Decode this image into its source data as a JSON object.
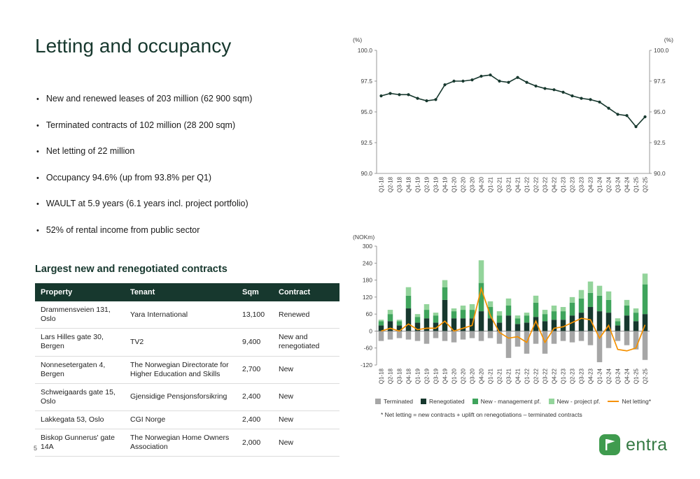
{
  "title": "Letting and occupancy",
  "page_number": "5",
  "bullets": [
    "New and renewed leases of 203 million (62 900 sqm)",
    "Terminated contracts of 102 million (28 200 sqm)",
    "Net letting of 22 million",
    "Occupancy 94.6% (up from 93.8% per Q1)",
    "WAULT at 5.9 years (6.1 years incl. project portfolio)",
    "52% of rental income from public sector"
  ],
  "contracts": {
    "heading": "Largest new and renegotiated contracts",
    "columns": [
      "Property",
      "Tenant",
      "Sqm",
      "Contract"
    ],
    "rows": [
      [
        "Drammensveien 131, Oslo",
        "Yara International",
        "13,100",
        "Renewed"
      ],
      [
        "Lars Hilles gate 30, Bergen",
        "TV2",
        "9,400",
        "New and renegotiated"
      ],
      [
        "Nonnesetergaten 4, Bergen",
        "The Norwegian Directorate for Higher Education and Skills",
        "2,700",
        "New"
      ],
      [
        "Schweigaards gate 15, Oslo",
        "Gjensidige Pensjonsforsikring",
        "2,400",
        "New"
      ],
      [
        "Lakkegata 53, Oslo",
        "CGI Norge",
        "2,400",
        "New"
      ],
      [
        "Biskop Gunnerus' gate 14A",
        "The Norwegian Home Owners Association",
        "2,000",
        "New"
      ]
    ]
  },
  "logo": {
    "text": "entra"
  },
  "colors": {
    "brand_dark_green": "#17382E",
    "medium_green": "#3FA45C",
    "light_green": "#93D49B",
    "terminated_gray": "#A6A6A6",
    "net_letting_orange": "#F59100"
  },
  "chart_data": [
    {
      "type": "line",
      "unit_label": "(%)",
      "x": [
        "Q1-18",
        "Q2-18",
        "Q3-18",
        "Q4-18",
        "Q1-19",
        "Q2-19",
        "Q3-19",
        "Q4-19",
        "Q1-20",
        "Q2-20",
        "Q3-20",
        "Q4-20",
        "Q1-21",
        "Q2-21",
        "Q3-21",
        "Q4-21",
        "Q1-22",
        "Q2-22",
        "Q3-22",
        "Q4-22",
        "Q1-23",
        "Q2-23",
        "Q3-23",
        "Q4-23",
        "Q1-24",
        "Q2-24",
        "Q3-24",
        "Q4-24",
        "Q1-25",
        "Q2-25"
      ],
      "series": [
        {
          "name": "Occupancy",
          "color": "#17382E",
          "values": [
            96.3,
            96.5,
            96.4,
            96.4,
            96.1,
            95.9,
            96.0,
            97.2,
            97.5,
            97.5,
            97.6,
            97.9,
            98.0,
            97.5,
            97.4,
            97.8,
            97.4,
            97.1,
            96.9,
            96.8,
            96.6,
            96.3,
            96.1,
            96.0,
            95.8,
            95.3,
            94.8,
            94.7,
            93.8,
            94.6
          ]
        }
      ],
      "ylim": [
        90.0,
        100.0
      ],
      "yticks": [
        "90.0",
        "92.5",
        "95.0",
        "97.5",
        "100.0"
      ],
      "grid": false,
      "axis_both_sides": true
    },
    {
      "type": "bar",
      "unit_label": "(NOKm)",
      "x": [
        "Q1-18",
        "Q2-18",
        "Q3-18",
        "Q4-18",
        "Q1-19",
        "Q2-19",
        "Q3-19",
        "Q4-19",
        "Q1-20",
        "Q2-20",
        "Q3-20",
        "Q4-20",
        "Q1-21",
        "Q2-21",
        "Q3-21",
        "Q4-21",
        "Q1-22",
        "Q2-22",
        "Q3-22",
        "Q4-22",
        "Q1-23",
        "Q2-23",
        "Q3-23",
        "Q4-23",
        "Q1-24",
        "Q2-24",
        "Q3-24",
        "Q4-24",
        "Q1-25",
        "Q2-25"
      ],
      "series": [
        {
          "name": "Terminated",
          "color": "#A6A6A6",
          "values": [
            -35,
            -30,
            -25,
            -30,
            -35,
            -45,
            -25,
            -35,
            -40,
            -30,
            -25,
            -35,
            -25,
            -45,
            -95,
            -55,
            -80,
            -45,
            -80,
            -45,
            -35,
            -40,
            -35,
            -50,
            -110,
            -60,
            -35,
            -50,
            -65,
            -102
          ]
        },
        {
          "name": "Renegotiated",
          "color": "#17382E",
          "values": [
            20,
            35,
            20,
            80,
            30,
            45,
            30,
            110,
            45,
            45,
            45,
            70,
            45,
            30,
            55,
            25,
            30,
            50,
            35,
            40,
            40,
            55,
            65,
            85,
            70,
            65,
            20,
            55,
            35,
            60
          ]
        },
        {
          "name": "New - management pf.",
          "color": "#3FA45C",
          "values": [
            15,
            25,
            15,
            45,
            20,
            30,
            25,
            45,
            25,
            30,
            30,
            100,
            40,
            25,
            35,
            20,
            25,
            50,
            25,
            30,
            30,
            45,
            50,
            50,
            55,
            45,
            15,
            35,
            30,
            105
          ]
        },
        {
          "name": "New - project pf.",
          "color": "#93D49B",
          "values": [
            5,
            15,
            5,
            30,
            10,
            20,
            10,
            25,
            10,
            15,
            20,
            80,
            20,
            15,
            25,
            10,
            10,
            25,
            15,
            20,
            15,
            20,
            30,
            40,
            35,
            30,
            10,
            20,
            15,
            38
          ]
        }
      ],
      "net_line": {
        "name": "Net letting*",
        "color": "#F59100",
        "values": [
          0,
          10,
          0,
          25,
          5,
          10,
          10,
          35,
          0,
          10,
          20,
          150,
          55,
          -5,
          -25,
          -20,
          -40,
          35,
          -40,
          10,
          15,
          30,
          45,
          40,
          -25,
          20,
          -65,
          -70,
          -60,
          22
        ]
      },
      "ylim": [
        -120,
        300
      ],
      "yticks": [
        "-120",
        "-60",
        "0",
        "60",
        "120",
        "180",
        "240",
        "300"
      ],
      "legend_position": "bottom",
      "footnote": "* Net letting = new contracts + uplift on renegotiations – terminated contracts"
    }
  ]
}
